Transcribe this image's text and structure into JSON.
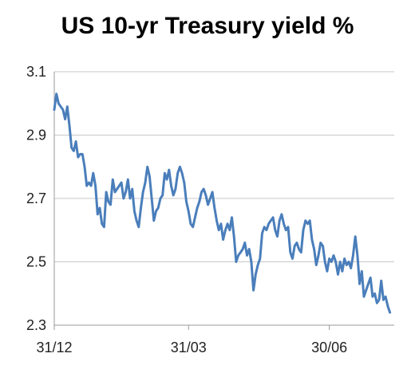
{
  "chart_data": {
    "type": "line",
    "title": "US 10-yr Treasury yield %",
    "xlabel": "",
    "ylabel": "",
    "ylim": [
      2.3,
      3.1
    ],
    "y_ticks": [
      "3.1",
      "2.9",
      "2.7",
      "2.5",
      "2.3"
    ],
    "x_tick_labels": [
      {
        "label": "31/12",
        "x": 0
      },
      {
        "label": "31/03",
        "x": 62
      },
      {
        "label": "30/06",
        "x": 127
      }
    ],
    "grid": "horizontal",
    "legend": "none",
    "colors": {
      "line": "#4a7ebb",
      "grid": "#c8c8c8",
      "axis": "#9a9a9a"
    },
    "series": [
      {
        "values": [
          [
            0,
            2.98
          ],
          [
            1,
            3.03
          ],
          [
            2,
            3.0
          ],
          [
            3,
            2.99
          ],
          [
            4,
            2.98
          ],
          [
            5,
            2.95
          ],
          [
            6,
            2.99
          ],
          [
            7,
            2.93
          ],
          [
            8,
            2.86
          ],
          [
            9,
            2.85
          ],
          [
            10,
            2.88
          ],
          [
            11,
            2.83
          ],
          [
            12,
            2.84
          ],
          [
            13,
            2.84
          ],
          [
            14,
            2.8
          ],
          [
            15,
            2.74
          ],
          [
            16,
            2.75
          ],
          [
            17,
            2.74
          ],
          [
            18,
            2.78
          ],
          [
            19,
            2.74
          ],
          [
            20,
            2.65
          ],
          [
            21,
            2.67
          ],
          [
            22,
            2.62
          ],
          [
            23,
            2.61
          ],
          [
            24,
            2.72
          ],
          [
            25,
            2.69
          ],
          [
            26,
            2.68
          ],
          [
            27,
            2.76
          ],
          [
            28,
            2.72
          ],
          [
            29,
            2.73
          ],
          [
            30,
            2.74
          ],
          [
            31,
            2.75
          ],
          [
            32,
            2.7
          ],
          [
            33,
            2.72
          ],
          [
            34,
            2.76
          ],
          [
            35,
            2.7
          ],
          [
            36,
            2.73
          ],
          [
            37,
            2.66
          ],
          [
            38,
            2.63
          ],
          [
            39,
            2.61
          ],
          [
            40,
            2.67
          ],
          [
            41,
            2.72
          ],
          [
            42,
            2.75
          ],
          [
            43,
            2.8
          ],
          [
            44,
            2.77
          ],
          [
            45,
            2.7
          ],
          [
            46,
            2.63
          ],
          [
            47,
            2.66
          ],
          [
            48,
            2.67
          ],
          [
            49,
            2.7
          ],
          [
            50,
            2.71
          ],
          [
            51,
            2.78
          ],
          [
            52,
            2.76
          ],
          [
            53,
            2.79
          ],
          [
            54,
            2.74
          ],
          [
            55,
            2.71
          ],
          [
            56,
            2.73
          ],
          [
            57,
            2.78
          ],
          [
            58,
            2.8
          ],
          [
            59,
            2.78
          ],
          [
            60,
            2.75
          ],
          [
            61,
            2.69
          ],
          [
            62,
            2.66
          ],
          [
            63,
            2.62
          ],
          [
            64,
            2.61
          ],
          [
            65,
            2.64
          ],
          [
            66,
            2.67
          ],
          [
            67,
            2.69
          ],
          [
            68,
            2.72
          ],
          [
            69,
            2.73
          ],
          [
            70,
            2.71
          ],
          [
            71,
            2.68
          ],
          [
            72,
            2.7
          ],
          [
            73,
            2.72
          ],
          [
            74,
            2.67
          ],
          [
            75,
            2.63
          ],
          [
            76,
            2.6
          ],
          [
            77,
            2.62
          ],
          [
            78,
            2.57
          ],
          [
            79,
            2.6
          ],
          [
            80,
            2.62
          ],
          [
            81,
            2.6
          ],
          [
            82,
            2.64
          ],
          [
            83,
            2.58
          ],
          [
            84,
            2.5
          ],
          [
            85,
            2.52
          ],
          [
            86,
            2.53
          ],
          [
            87,
            2.54
          ],
          [
            88,
            2.56
          ],
          [
            89,
            2.52
          ],
          [
            90,
            2.54
          ],
          [
            91,
            2.5
          ],
          [
            92,
            2.41
          ],
          [
            93,
            2.46
          ],
          [
            94,
            2.49
          ],
          [
            95,
            2.51
          ],
          [
            96,
            2.59
          ],
          [
            97,
            2.61
          ],
          [
            98,
            2.6
          ],
          [
            99,
            2.62
          ],
          [
            100,
            2.63
          ],
          [
            101,
            2.64
          ],
          [
            102,
            2.6
          ],
          [
            103,
            2.58
          ],
          [
            104,
            2.63
          ],
          [
            105,
            2.65
          ],
          [
            106,
            2.62
          ],
          [
            107,
            2.6
          ],
          [
            108,
            2.61
          ],
          [
            109,
            2.53
          ],
          [
            110,
            2.51
          ],
          [
            111,
            2.55
          ],
          [
            112,
            2.56
          ],
          [
            113,
            2.54
          ],
          [
            114,
            2.53
          ],
          [
            115,
            2.6
          ],
          [
            116,
            2.63
          ],
          [
            117,
            2.62
          ],
          [
            118,
            2.63
          ],
          [
            119,
            2.57
          ],
          [
            120,
            2.54
          ],
          [
            121,
            2.49
          ],
          [
            122,
            2.52
          ],
          [
            123,
            2.56
          ],
          [
            124,
            2.55
          ],
          [
            125,
            2.5
          ],
          [
            126,
            2.47
          ],
          [
            127,
            2.51
          ],
          [
            128,
            2.5
          ],
          [
            129,
            2.52
          ],
          [
            130,
            2.5
          ],
          [
            131,
            2.46
          ],
          [
            132,
            2.5
          ],
          [
            133,
            2.47
          ],
          [
            134,
            2.51
          ],
          [
            135,
            2.49
          ],
          [
            136,
            2.5
          ],
          [
            137,
            2.48
          ],
          [
            138,
            2.52
          ],
          [
            139,
            2.58
          ],
          [
            140,
            2.52
          ],
          [
            141,
            2.43
          ],
          [
            142,
            2.47
          ],
          [
            143,
            2.39
          ],
          [
            144,
            2.41
          ],
          [
            145,
            2.43
          ],
          [
            146,
            2.45
          ],
          [
            147,
            2.39
          ],
          [
            148,
            2.4
          ],
          [
            149,
            2.37
          ],
          [
            150,
            2.38
          ],
          [
            151,
            2.44
          ],
          [
            152,
            2.38
          ],
          [
            153,
            2.39
          ],
          [
            154,
            2.36
          ],
          [
            155,
            2.34
          ]
        ]
      }
    ]
  }
}
